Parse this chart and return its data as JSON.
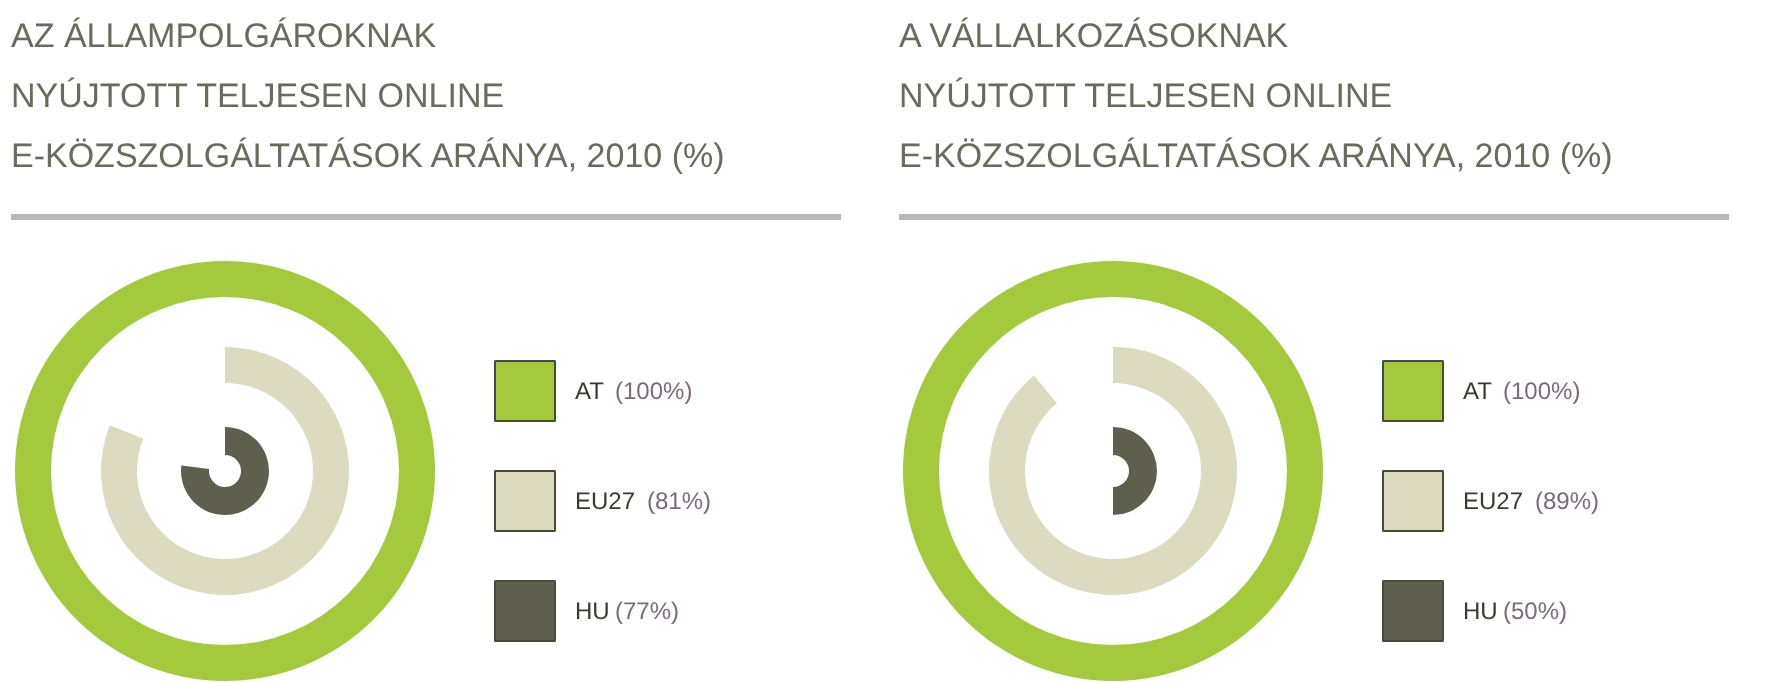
{
  "chart_data": [
    {
      "type": "other",
      "title": "AZ ÁLLAMPOLGÁROKNAK\nNYÚJTOTT TELJESEN ONLINE\nE-KÖZSZOLGÁLTATÁSOK ARÁNYA, 2010 (%)",
      "categories": [
        "AT",
        "EU27",
        "HU"
      ],
      "values": [
        100,
        81,
        77
      ],
      "value_labels": [
        "(100%)",
        "(81%)",
        "(77%)"
      ],
      "colors": [
        "#a4c93c",
        "#dcdbc2",
        "#5f5f4f"
      ]
    },
    {
      "type": "other",
      "title": "A VÁLLALKOZÁSOKNAK\nNYÚJTOTT TELJESEN ONLINE\nE-KÖZSZOLGÁLTATÁSOK ARÁNYA, 2010 (%)",
      "categories": [
        "AT",
        "EU27",
        "HU"
      ],
      "values": [
        100,
        89,
        50
      ],
      "value_labels": [
        "(100%)",
        "(89%)",
        "(50%)"
      ],
      "colors": [
        "#a4c93c",
        "#dcdbc2",
        "#5f5f4f"
      ]
    }
  ]
}
